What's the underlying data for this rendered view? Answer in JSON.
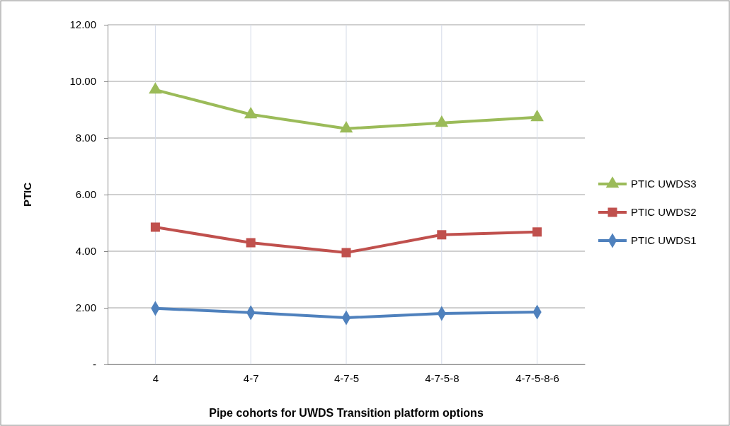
{
  "chart_data": {
    "type": "line",
    "xlabel": "Pipe cohorts for UWDS Transition platform options",
    "ylabel": "PTIC",
    "categories": [
      "4",
      "4-7",
      "4-7-5",
      "4-7-5-8",
      "4-7-5-8-6"
    ],
    "series": [
      {
        "name": "PTIC UWDS3",
        "color": "#9bbb59",
        "marker": "triangle",
        "values": [
          9.7,
          8.83,
          8.33,
          8.53,
          8.73
        ]
      },
      {
        "name": "PTIC UWDS2",
        "color": "#c0504d",
        "marker": "square",
        "values": [
          4.85,
          4.3,
          3.95,
          4.58,
          4.68
        ]
      },
      {
        "name": "PTIC UWDS1",
        "color": "#4f81bd",
        "marker": "diamond",
        "values": [
          1.98,
          1.83,
          1.65,
          1.8,
          1.85
        ]
      }
    ],
    "ylim": [
      0,
      12
    ],
    "yticks": [
      {
        "value": 0,
        "label": "-"
      },
      {
        "value": 2,
        "label": "2.00"
      },
      {
        "value": 4,
        "label": "4.00"
      },
      {
        "value": 6,
        "label": "6.00"
      },
      {
        "value": 8,
        "label": "8.00"
      },
      {
        "value": 10,
        "label": "10.00"
      },
      {
        "value": 12,
        "label": "12.00"
      }
    ],
    "grid": true,
    "legend": "right"
  }
}
